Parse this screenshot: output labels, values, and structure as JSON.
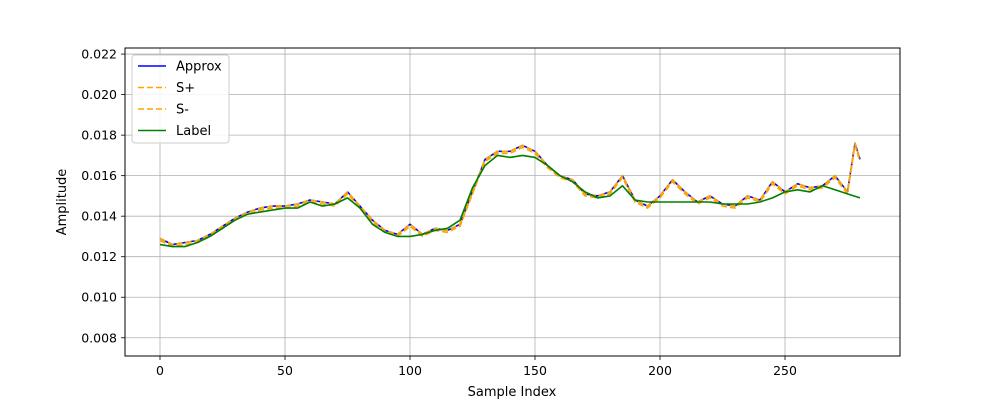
{
  "chart_data": {
    "type": "line",
    "xlabel": "Sample Index",
    "ylabel": "Amplitude",
    "xlim": [
      -14,
      296
    ],
    "ylim": [
      0.0071,
      0.0223
    ],
    "xticks": [
      0,
      50,
      100,
      150,
      200,
      250
    ],
    "yticks": [
      0.008,
      0.01,
      0.012,
      0.014,
      0.016,
      0.018,
      0.02,
      0.022
    ],
    "grid": true,
    "legend_position": "top-left",
    "x_range": [
      0,
      281
    ],
    "series": [
      {
        "name": "Approx",
        "color": "#0000ff",
        "style": "solid",
        "x": [
          0,
          5,
          10,
          15,
          20,
          25,
          30,
          35,
          40,
          45,
          50,
          55,
          60,
          65,
          70,
          75,
          80,
          85,
          90,
          95,
          100,
          105,
          110,
          115,
          120,
          125,
          130,
          135,
          140,
          145,
          150,
          155,
          160,
          165,
          170,
          175,
          180,
          185,
          190,
          195,
          200,
          205,
          210,
          215,
          220,
          225,
          230,
          235,
          240,
          245,
          250,
          255,
          260,
          265,
          270,
          275,
          278,
          280
        ],
        "y": [
          0.0129,
          0.0126,
          0.0127,
          0.0128,
          0.0131,
          0.0135,
          0.0139,
          0.0142,
          0.0144,
          0.0145,
          0.0145,
          0.0146,
          0.0148,
          0.0147,
          0.0146,
          0.0152,
          0.0145,
          0.0138,
          0.0133,
          0.0131,
          0.0136,
          0.0131,
          0.0134,
          0.0133,
          0.0136,
          0.0152,
          0.0168,
          0.0172,
          0.0172,
          0.0175,
          0.0172,
          0.0165,
          0.016,
          0.0158,
          0.0151,
          0.015,
          0.0152,
          0.016,
          0.0148,
          0.0145,
          0.015,
          0.0158,
          0.0152,
          0.0147,
          0.015,
          0.0146,
          0.0145,
          0.015,
          0.0148,
          0.0157,
          0.0152,
          0.0156,
          0.0154,
          0.0155,
          0.016,
          0.0152,
          0.0176,
          0.0168
        ]
      },
      {
        "name": "S+",
        "color": "#ffa500",
        "style": "dashed",
        "x": [
          0,
          5,
          10,
          15,
          20,
          25,
          30,
          35,
          40,
          45,
          50,
          55,
          60,
          65,
          70,
          75,
          80,
          85,
          90,
          95,
          100,
          105,
          110,
          115,
          120,
          125,
          130,
          135,
          140,
          145,
          150,
          155,
          160,
          165,
          170,
          175,
          180,
          185,
          190,
          195,
          200,
          205,
          210,
          215,
          220,
          225,
          230,
          235,
          240,
          245,
          250,
          255,
          260,
          265,
          270,
          275,
          278,
          280
        ],
        "y": [
          0.0129,
          0.0126,
          0.0127,
          0.0128,
          0.0131,
          0.0135,
          0.0139,
          0.0142,
          0.0144,
          0.0145,
          0.0145,
          0.0146,
          0.0148,
          0.0147,
          0.0146,
          0.0152,
          0.0145,
          0.0138,
          0.0133,
          0.0131,
          0.0136,
          0.0131,
          0.0134,
          0.0133,
          0.0136,
          0.0152,
          0.0168,
          0.0172,
          0.0172,
          0.0175,
          0.0172,
          0.0165,
          0.016,
          0.0158,
          0.0151,
          0.015,
          0.0152,
          0.016,
          0.0148,
          0.0145,
          0.015,
          0.0158,
          0.0152,
          0.0147,
          0.015,
          0.0146,
          0.0145,
          0.015,
          0.0148,
          0.0157,
          0.0152,
          0.0156,
          0.0154,
          0.0155,
          0.016,
          0.0152,
          0.0176,
          0.0168
        ]
      },
      {
        "name": "S-",
        "color": "#ffa500",
        "style": "dashed",
        "x": [
          0,
          5,
          10,
          15,
          20,
          25,
          30,
          35,
          40,
          45,
          50,
          55,
          60,
          65,
          70,
          75,
          80,
          85,
          90,
          95,
          100,
          105,
          110,
          115,
          120,
          125,
          130,
          135,
          140,
          145,
          150,
          155,
          160,
          165,
          170,
          175,
          180,
          185,
          190,
          195,
          200,
          205,
          210,
          215,
          220,
          225,
          230,
          235,
          240,
          245,
          250,
          255,
          260,
          265,
          270,
          275,
          278,
          280
        ],
        "y": [
          0.0128,
          0.0125,
          0.0126,
          0.0127,
          0.013,
          0.0134,
          0.0138,
          0.0141,
          0.0143,
          0.0144,
          0.0144,
          0.0145,
          0.0147,
          0.0146,
          0.0145,
          0.0151,
          0.0144,
          0.0137,
          0.0132,
          0.013,
          0.0135,
          0.013,
          0.0133,
          0.0132,
          0.0135,
          0.0151,
          0.0167,
          0.0171,
          0.0171,
          0.0174,
          0.0171,
          0.0164,
          0.0159,
          0.0157,
          0.015,
          0.0149,
          0.0151,
          0.0159,
          0.0147,
          0.0144,
          0.0149,
          0.0157,
          0.0151,
          0.0146,
          0.0149,
          0.0145,
          0.0144,
          0.0149,
          0.0147,
          0.0156,
          0.0151,
          0.0155,
          0.0153,
          0.0154,
          0.0159,
          0.0151,
          0.0175,
          0.0167
        ]
      },
      {
        "name": "Label",
        "color": "#008000",
        "style": "solid",
        "x": [
          0,
          5,
          10,
          15,
          20,
          25,
          30,
          35,
          40,
          45,
          50,
          55,
          60,
          65,
          70,
          75,
          80,
          85,
          90,
          95,
          100,
          105,
          110,
          115,
          120,
          125,
          130,
          135,
          140,
          145,
          150,
          155,
          160,
          165,
          170,
          175,
          180,
          185,
          190,
          195,
          200,
          205,
          210,
          215,
          220,
          225,
          230,
          235,
          240,
          245,
          250,
          255,
          260,
          265,
          270,
          275,
          280
        ],
        "y": [
          0.0126,
          0.0125,
          0.0125,
          0.0127,
          0.013,
          0.0134,
          0.0138,
          0.0141,
          0.0142,
          0.0143,
          0.0144,
          0.0144,
          0.0147,
          0.0145,
          0.0146,
          0.0149,
          0.0144,
          0.0136,
          0.0132,
          0.013,
          0.013,
          0.0131,
          0.0133,
          0.0134,
          0.0138,
          0.0154,
          0.0165,
          0.017,
          0.0169,
          0.017,
          0.0169,
          0.0165,
          0.016,
          0.0157,
          0.0152,
          0.0149,
          0.015,
          0.0155,
          0.0148,
          0.0147,
          0.0147,
          0.0147,
          0.0147,
          0.0147,
          0.0147,
          0.0146,
          0.0146,
          0.0146,
          0.0147,
          0.0149,
          0.0152,
          0.0153,
          0.0152,
          0.0155,
          0.0153,
          0.0151,
          0.0149
        ]
      }
    ]
  }
}
